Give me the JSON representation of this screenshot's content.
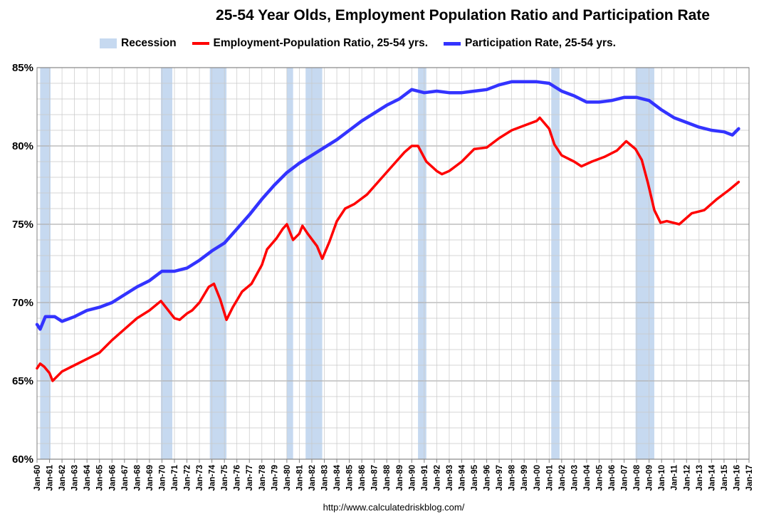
{
  "source_note": "http://www.calculatedriskblog.com/",
  "colors": {
    "recession": "#c6d9f0",
    "employment": "#ff0000",
    "participation": "#3333ff",
    "grid": "#c8c8c8",
    "grid_major": "#b0b0b0"
  },
  "chart_data": {
    "type": "line",
    "title": "25-54 Year Olds, Employment Population Ratio and Participation Rate",
    "xlabel": "",
    "ylabel": "",
    "x_range": [
      "Jan-60",
      "Jan-17"
    ],
    "ylim": [
      60,
      85
    ],
    "y_ticks": [
      60,
      65,
      70,
      75,
      80,
      85
    ],
    "y_tick_labels": [
      "60%",
      "65%",
      "70%",
      "75%",
      "80%",
      "85%"
    ],
    "x_tick_labels": [
      "Jan-60",
      "Jan-61",
      "Jan-62",
      "Jan-63",
      "Jan-64",
      "Jan-65",
      "Jan-66",
      "Jan-67",
      "Jan-68",
      "Jan-69",
      "Jan-70",
      "Jan-71",
      "Jan-72",
      "Jan-73",
      "Jan-74",
      "Jan-75",
      "Jan-76",
      "Jan-77",
      "Jan-78",
      "Jan-79",
      "Jan-80",
      "Jan-81",
      "Jan-82",
      "Jan-83",
      "Jan-84",
      "Jan-85",
      "Jan-86",
      "Jan-87",
      "Jan-88",
      "Jan-89",
      "Jan-90",
      "Jan-91",
      "Jan-92",
      "Jan-93",
      "Jan-94",
      "Jan-95",
      "Jan-96",
      "Jan-97",
      "Jan-98",
      "Jan-99",
      "Jan-00",
      "Jan-01",
      "Jan-02",
      "Jan-03",
      "Jan-04",
      "Jan-05",
      "Jan-06",
      "Jan-07",
      "Jan-08",
      "Jan-09",
      "Jan-10",
      "Jan-11",
      "Jan-12",
      "Jan-13",
      "Jan-14",
      "Jan-15",
      "Jan-16",
      "Jan-17"
    ],
    "grid": true,
    "legend": {
      "placement": "top",
      "recession_label": "Recession"
    },
    "recessions": [
      [
        "1960-04",
        "1961-02"
      ],
      [
        "1969-12",
        "1970-11"
      ],
      [
        "1973-11",
        "1975-03"
      ],
      [
        "1980-01",
        "1980-07"
      ],
      [
        "1981-07",
        "1982-11"
      ],
      [
        "1990-07",
        "1991-03"
      ],
      [
        "2001-03",
        "2001-11"
      ],
      [
        "2007-12",
        "2009-06"
      ]
    ],
    "series": [
      {
        "name": "Employment-Population Ratio, 25-54 yrs.",
        "color": "#ff0000",
        "points": [
          [
            "1960-01",
            65.8
          ],
          [
            "1960-04",
            66.1
          ],
          [
            "1960-08",
            65.9
          ],
          [
            "1961-01",
            65.5
          ],
          [
            "1961-04",
            65.0
          ],
          [
            "1962-01",
            65.6
          ],
          [
            "1963-01",
            66.0
          ],
          [
            "1964-01",
            66.4
          ],
          [
            "1965-01",
            66.8
          ],
          [
            "1966-01",
            67.6
          ],
          [
            "1967-01",
            68.3
          ],
          [
            "1968-01",
            69.0
          ],
          [
            "1969-01",
            69.5
          ],
          [
            "1969-12",
            70.1
          ],
          [
            "1970-06",
            69.6
          ],
          [
            "1971-01",
            69.0
          ],
          [
            "1971-06",
            68.9
          ],
          [
            "1972-01",
            69.3
          ],
          [
            "1972-06",
            69.5
          ],
          [
            "1973-01",
            70.0
          ],
          [
            "1973-10",
            71.0
          ],
          [
            "1974-03",
            71.2
          ],
          [
            "1974-09",
            70.2
          ],
          [
            "1975-03",
            68.9
          ],
          [
            "1975-09",
            69.7
          ],
          [
            "1976-06",
            70.7
          ],
          [
            "1977-03",
            71.2
          ],
          [
            "1978-01",
            72.4
          ],
          [
            "1978-06",
            73.4
          ],
          [
            "1979-03",
            74.1
          ],
          [
            "1979-09",
            74.7
          ],
          [
            "1980-01",
            75.0
          ],
          [
            "1980-07",
            74.0
          ],
          [
            "1981-01",
            74.4
          ],
          [
            "1981-04",
            74.9
          ],
          [
            "1981-09",
            74.4
          ],
          [
            "1982-06",
            73.6
          ],
          [
            "1982-11",
            72.8
          ],
          [
            "1983-06",
            73.9
          ],
          [
            "1984-01",
            75.2
          ],
          [
            "1984-09",
            76.0
          ],
          [
            "1985-06",
            76.3
          ],
          [
            "1986-06",
            76.9
          ],
          [
            "1987-06",
            77.8
          ],
          [
            "1988-06",
            78.7
          ],
          [
            "1989-06",
            79.6
          ],
          [
            "1990-01",
            80.0
          ],
          [
            "1990-07",
            80.0
          ],
          [
            "1991-03",
            79.0
          ],
          [
            "1992-01",
            78.4
          ],
          [
            "1992-06",
            78.2
          ],
          [
            "1993-01",
            78.4
          ],
          [
            "1994-01",
            79.0
          ],
          [
            "1995-01",
            79.8
          ],
          [
            "1996-01",
            79.9
          ],
          [
            "1997-01",
            80.5
          ],
          [
            "1998-01",
            81.0
          ],
          [
            "1999-01",
            81.3
          ],
          [
            "2000-01",
            81.6
          ],
          [
            "2000-04",
            81.8
          ],
          [
            "2001-01",
            81.1
          ],
          [
            "2001-06",
            80.1
          ],
          [
            "2002-01",
            79.4
          ],
          [
            "2003-01",
            79.0
          ],
          [
            "2003-08",
            78.7
          ],
          [
            "2004-06",
            79.0
          ],
          [
            "2005-06",
            79.3
          ],
          [
            "2006-06",
            79.7
          ],
          [
            "2007-03",
            80.3
          ],
          [
            "2007-12",
            79.8
          ],
          [
            "2008-06",
            79.1
          ],
          [
            "2008-12",
            77.6
          ],
          [
            "2009-06",
            75.9
          ],
          [
            "2009-12",
            75.1
          ],
          [
            "2010-06",
            75.2
          ],
          [
            "2011-06",
            75.0
          ],
          [
            "2012-06",
            75.7
          ],
          [
            "2013-06",
            75.9
          ],
          [
            "2014-06",
            76.6
          ],
          [
            "2015-06",
            77.2
          ],
          [
            "2016-03",
            77.7
          ]
        ]
      },
      {
        "name": "Participation Rate, 25-54 yrs.",
        "color": "#3333ff",
        "points": [
          [
            "1960-01",
            68.6
          ],
          [
            "1960-04",
            68.3
          ],
          [
            "1960-09",
            69.1
          ],
          [
            "1961-06",
            69.1
          ],
          [
            "1962-01",
            68.8
          ],
          [
            "1963-01",
            69.1
          ],
          [
            "1964-01",
            69.5
          ],
          [
            "1965-01",
            69.7
          ],
          [
            "1966-01",
            70.0
          ],
          [
            "1967-01",
            70.5
          ],
          [
            "1968-01",
            71.0
          ],
          [
            "1969-01",
            71.4
          ],
          [
            "1970-01",
            72.0
          ],
          [
            "1971-01",
            72.0
          ],
          [
            "1972-01",
            72.2
          ],
          [
            "1973-01",
            72.7
          ],
          [
            "1974-01",
            73.3
          ],
          [
            "1975-01",
            73.8
          ],
          [
            "1976-01",
            74.7
          ],
          [
            "1977-01",
            75.6
          ],
          [
            "1978-01",
            76.6
          ],
          [
            "1979-01",
            77.5
          ],
          [
            "1980-01",
            78.3
          ],
          [
            "1981-01",
            78.9
          ],
          [
            "1982-01",
            79.4
          ],
          [
            "1983-01",
            79.9
          ],
          [
            "1984-01",
            80.4
          ],
          [
            "1985-01",
            81.0
          ],
          [
            "1986-01",
            81.6
          ],
          [
            "1987-01",
            82.1
          ],
          [
            "1988-01",
            82.6
          ],
          [
            "1989-01",
            83.0
          ],
          [
            "1990-01",
            83.6
          ],
          [
            "1991-01",
            83.4
          ],
          [
            "1992-01",
            83.5
          ],
          [
            "1993-01",
            83.4
          ],
          [
            "1994-01",
            83.4
          ],
          [
            "1995-01",
            83.5
          ],
          [
            "1996-01",
            83.6
          ],
          [
            "1997-01",
            83.9
          ],
          [
            "1998-01",
            84.1
          ],
          [
            "1999-01",
            84.1
          ],
          [
            "2000-01",
            84.1
          ],
          [
            "2001-01",
            84.0
          ],
          [
            "2002-01",
            83.5
          ],
          [
            "2003-01",
            83.2
          ],
          [
            "2004-01",
            82.8
          ],
          [
            "2005-01",
            82.8
          ],
          [
            "2006-01",
            82.9
          ],
          [
            "2007-01",
            83.1
          ],
          [
            "2008-01",
            83.1
          ],
          [
            "2009-01",
            82.9
          ],
          [
            "2010-01",
            82.3
          ],
          [
            "2011-01",
            81.8
          ],
          [
            "2012-01",
            81.5
          ],
          [
            "2013-01",
            81.2
          ],
          [
            "2014-01",
            81.0
          ],
          [
            "2015-01",
            80.9
          ],
          [
            "2015-09",
            80.7
          ],
          [
            "2016-03",
            81.1
          ]
        ]
      }
    ]
  }
}
